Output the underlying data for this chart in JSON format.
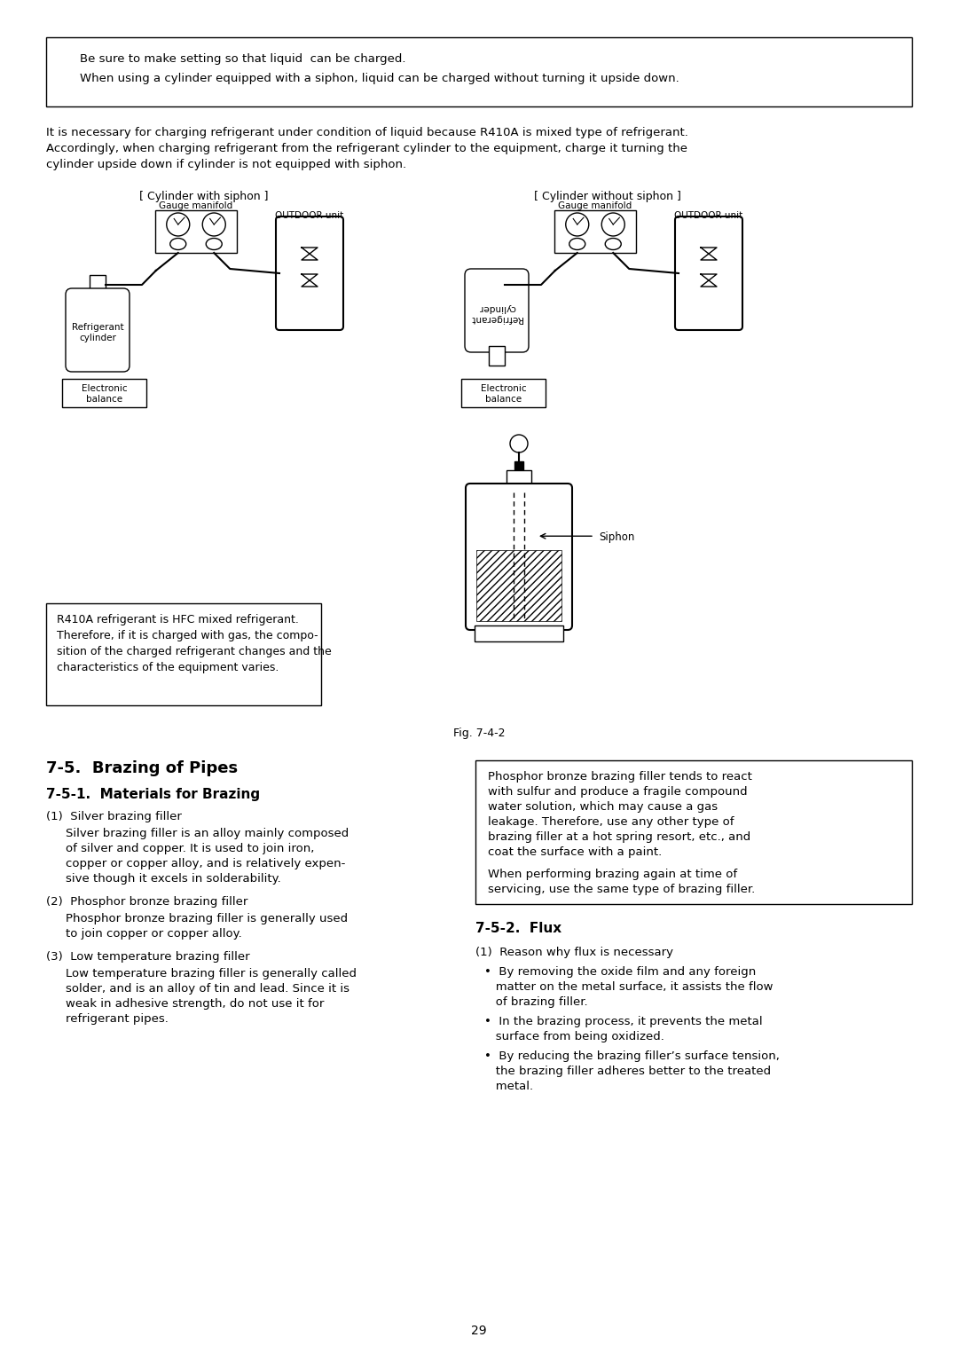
{
  "page_bg": "#ffffff",
  "text_color": "#000000",
  "box1_text_line1": "Be sure to make setting so that liquid  can be charged.",
  "box1_text_line2": "When using a cylinder equipped with a siphon, liquid can be charged without turning it upside down.",
  "para1_l1": "It is necessary for charging refrigerant under condition of liquid because R410A is mixed type of refrigerant.",
  "para1_l2": "Accordingly, when charging refrigerant from the refrigerant cylinder to the equipment, charge it turning the",
  "para1_l3": "cylinder upside down if cylinder is not equipped with siphon.",
  "label_cylinder_siphon": "[ Cylinder with siphon ]",
  "label_cylinder_no_siphon": "[ Cylinder without siphon ]",
  "label_gauge_manifold": "Gauge manifold",
  "label_outdoor_unit": "OUTDOOR unit",
  "label_refrigerant_cylinder": "Refrigerant\ncylinder",
  "label_refrigerant_cylinder_upside": "Refrigerant\ncylinder",
  "label_electronic_balance": "Electronic\nbalance",
  "label_siphon": "Siphon",
  "box2_l1": "R410A refrigerant is HFC mixed refrigerant.",
  "box2_l2": "Therefore, if it is charged with gas, the compo-",
  "box2_l3": "sition of the charged refrigerant changes and the",
  "box2_l4": "characteristics of the equipment varies.",
  "fig_label": "Fig. 7-4-2",
  "section_title": "7-5.  Brazing of Pipes",
  "sub_title1": "7-5-1.  Materials for Brazing",
  "item1_title": "(1)  Silver brazing filler",
  "item1_l1": "Silver brazing filler is an alloy mainly composed",
  "item1_l2": "of silver and copper. It is used to join iron,",
  "item1_l3": "copper or copper alloy, and is relatively expen-",
  "item1_l4": "sive though it excels in solderability.",
  "item2_title": "(2)  Phosphor bronze brazing filler",
  "item2_l1": "Phosphor bronze brazing filler is generally used",
  "item2_l2": "to join copper or copper alloy.",
  "item3_title": "(3)  Low temperature brazing filler",
  "item3_l1": "Low temperature brazing filler is generally called",
  "item3_l2": "solder, and is an alloy of tin and lead. Since it is",
  "item3_l3": "weak in adhesive strength, do not use it for",
  "item3_l4": "refrigerant pipes.",
  "box3_l1": "Phosphor bronze brazing filler tends to react",
  "box3_l2": "with sulfur and produce a fragile compound",
  "box3_l3": "water solution, which may cause a gas",
  "box3_l4": "leakage. Therefore, use any other type of",
  "box3_l5": "brazing filler at a hot spring resort, etc., and",
  "box3_l6": "coat the surface with a paint.",
  "box3_l7": "",
  "box3_l8": "When performing brazing again at time of",
  "box3_l9": "servicing, use the same type of brazing filler.",
  "sub_title2": "7-5-2.  Flux",
  "flux_item1_title": "(1)  Reason why flux is necessary",
  "flux_b1_l1": "•  By removing the oxide film and any foreign",
  "flux_b1_l2": "   matter on the metal surface, it assists the flow",
  "flux_b1_l3": "   of brazing filler.",
  "flux_b2_l1": "•  In the brazing process, it prevents the metal",
  "flux_b2_l2": "   surface from being oxidized.",
  "flux_b3_l1": "•  By reducing the brazing filler’s surface tension,",
  "flux_b3_l2": "   the brazing filler adheres better to the treated",
  "flux_b3_l3": "   metal.",
  "page_number": "29"
}
